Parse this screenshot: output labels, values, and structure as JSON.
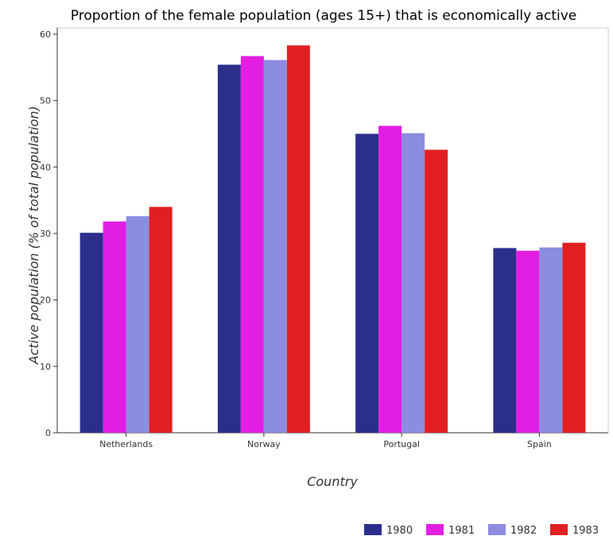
{
  "chart_data": {
    "type": "bar",
    "title": "Proportion of the female population (ages 15+) that is economically active",
    "xlabel": "Country",
    "ylabel": "Active population (% of total population)",
    "categories": [
      "Netherlands",
      "Norway",
      "Portugal",
      "Spain"
    ],
    "ylim": [
      0,
      60
    ],
    "yticks": [
      0,
      10,
      20,
      30,
      40,
      50,
      60
    ],
    "grid": false,
    "legend_position": "bottom-right",
    "series": [
      {
        "name": "1980",
        "color": "#2b2f8c",
        "values": [
          30.1,
          55.4,
          45.0,
          27.8
        ]
      },
      {
        "name": "1981",
        "color": "#e31ee3",
        "values": [
          31.8,
          56.7,
          46.2,
          27.4
        ]
      },
      {
        "name": "1982",
        "color": "#8c8ce0",
        "values": [
          32.6,
          56.1,
          45.1,
          27.9
        ]
      },
      {
        "name": "1983",
        "color": "#e02020",
        "values": [
          34.0,
          58.3,
          42.6,
          28.6
        ]
      }
    ]
  }
}
